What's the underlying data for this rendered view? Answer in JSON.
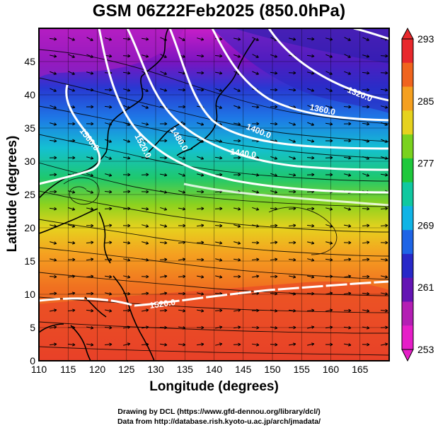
{
  "title": "GSM 06Z22Feb2025 (850.0hPa)",
  "map": {
    "xlabel": "Longitude (degrees)",
    "ylabel": "Latitude  (degrees)",
    "lon_range": [
      110,
      170
    ],
    "lat_range": [
      0,
      50
    ],
    "x_ticks": [
      "110",
      "115",
      "120",
      "125",
      "130",
      "135",
      "140",
      "145",
      "150",
      "155",
      "160",
      "165"
    ],
    "y_ticks": [
      "0",
      "5",
      "10",
      "15",
      "20",
      "25",
      "30",
      "35",
      "40",
      "45"
    ],
    "grid": true,
    "fields": [
      "temperature (color shading)",
      "geopotential height (white contours)",
      "wind (streamlines)"
    ]
  },
  "colorbar": {
    "labels": [
      "293",
      "285",
      "277",
      "269",
      "261",
      "253"
    ],
    "min": 253,
    "max": 293,
    "colors": [
      "#e8282c",
      "#f0641e",
      "#f5a020",
      "#e6d21e",
      "#7ad21e",
      "#1ec83c",
      "#10c8a0",
      "#10b4e6",
      "#1e64e6",
      "#2828c8",
      "#6414b4",
      "#b41eb4",
      "#e61ec8"
    ]
  },
  "contours": [
    {
      "label": "1320.0"
    },
    {
      "label": "1360.0"
    },
    {
      "label": "1400.0"
    },
    {
      "label": "1440.0"
    },
    {
      "label": "1480.0"
    },
    {
      "label": "1520.0"
    },
    {
      "label": "1560.0"
    },
    {
      "label": "1520.0"
    }
  ],
  "credits": {
    "line1": "Drawing by DCL (https://www.gfd-dennou.org/library/dcl/)",
    "line2": "Data from http://database.rish.kyoto-u.ac.jp/arch/jmadata/"
  }
}
